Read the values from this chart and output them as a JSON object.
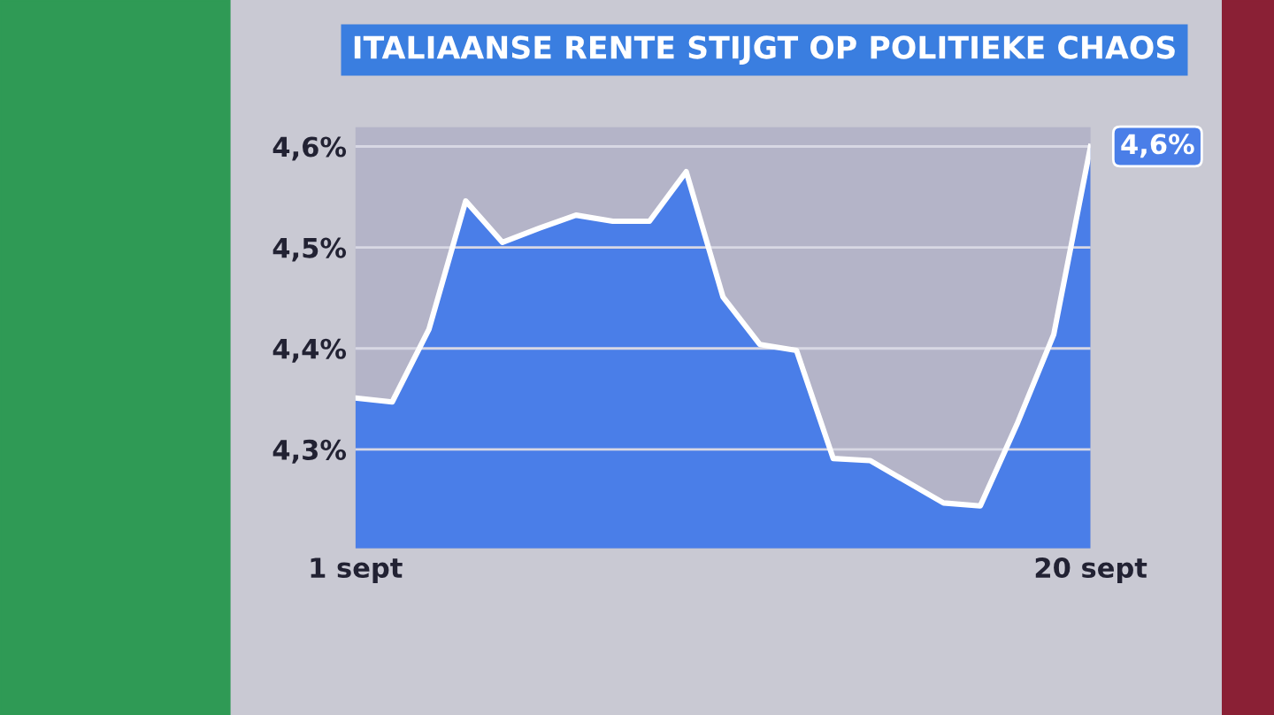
{
  "chart_data": {
    "type": "area",
    "title": "ITALIAANSE RENTE STIJGT OP POLITIEKE CHAOS",
    "categories": [
      "1 sept",
      null,
      null,
      null,
      null,
      null,
      null,
      null,
      null,
      null,
      null,
      null,
      null,
      null,
      null,
      null,
      null,
      null,
      null,
      null,
      "20 sept"
    ],
    "series": [
      {
        "color": "#4a7ee8",
        "values": [
          4.351,
          4.347,
          4.419,
          4.546,
          4.505,
          4.519,
          4.532,
          4.526,
          4.526,
          4.575,
          4.451,
          4.404,
          4.398,
          4.291,
          4.289,
          4.268,
          4.247,
          4.244,
          4.325,
          4.414,
          4.6
        ],
        "value_labels": [
          null,
          null,
          null,
          null,
          null,
          null,
          null,
          null,
          null,
          null,
          null,
          null,
          null,
          null,
          null,
          null,
          null,
          null,
          null,
          null,
          "4,6%"
        ]
      }
    ],
    "ylim": [
      4.202,
      4.619
    ],
    "yticks": [
      {
        "value": 4.3,
        "label": "4,3%"
      },
      {
        "value": 4.4,
        "label": "4,4%"
      },
      {
        "value": 4.5,
        "label": "4,5%"
      },
      {
        "value": 4.6,
        "label": "4,6%"
      }
    ],
    "grid": "y",
    "legend": false
  }
}
